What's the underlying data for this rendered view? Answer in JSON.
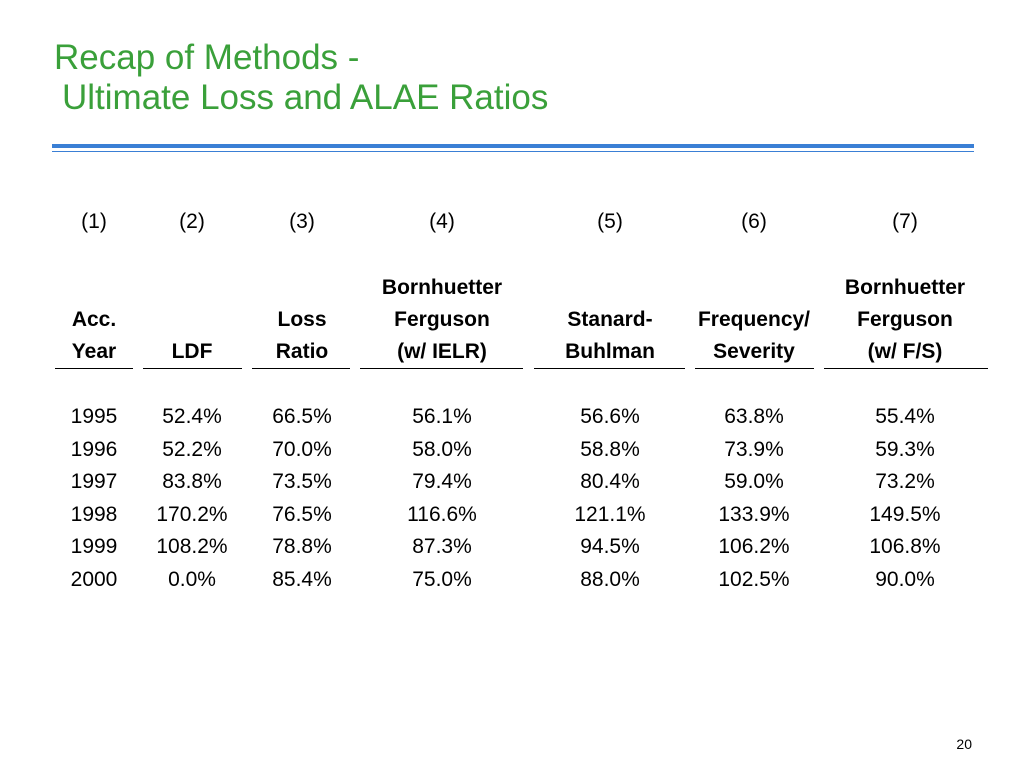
{
  "slide": {
    "title_line1": "Recap of Methods -",
    "title_line2": "Ultimate Loss and ALAE Ratios",
    "page_number": "20",
    "accent_color": "#3aa03a",
    "rule_color": "#3a7fd5"
  },
  "table": {
    "column_numbers": [
      "(1)",
      "(2)",
      "(3)",
      "(4)",
      "(5)",
      "(6)",
      "(7)"
    ],
    "headers": [
      [
        "",
        "Acc.",
        "Year"
      ],
      [
        "",
        "",
        "LDF"
      ],
      [
        "",
        "Loss",
        "Ratio"
      ],
      [
        "Bornhuetter",
        "Ferguson",
        "(w/ IELR)"
      ],
      [
        "",
        "Stanard-",
        "Buhlman"
      ],
      [
        "",
        "Frequency/",
        "Severity"
      ],
      [
        "Bornhuetter",
        "Ferguson",
        "(w/ F/S)"
      ]
    ],
    "rows": [
      [
        "1995",
        "52.4%",
        "66.5%",
        "56.1%",
        "56.6%",
        "63.8%",
        "55.4%"
      ],
      [
        "1996",
        "52.2%",
        "70.0%",
        "58.0%",
        "58.8%",
        "73.9%",
        "59.3%"
      ],
      [
        "1997",
        "83.8%",
        "73.5%",
        "79.4%",
        "80.4%",
        "59.0%",
        "73.2%"
      ],
      [
        "1998",
        "170.2%",
        "76.5%",
        "116.6%",
        "121.1%",
        "133.9%",
        "149.5%"
      ],
      [
        "1999",
        "108.2%",
        "78.8%",
        "87.3%",
        "94.5%",
        "106.2%",
        "106.8%"
      ],
      [
        "2000",
        "0.0%",
        "85.4%",
        "75.0%",
        "88.0%",
        "102.5%",
        "90.0%"
      ]
    ]
  }
}
